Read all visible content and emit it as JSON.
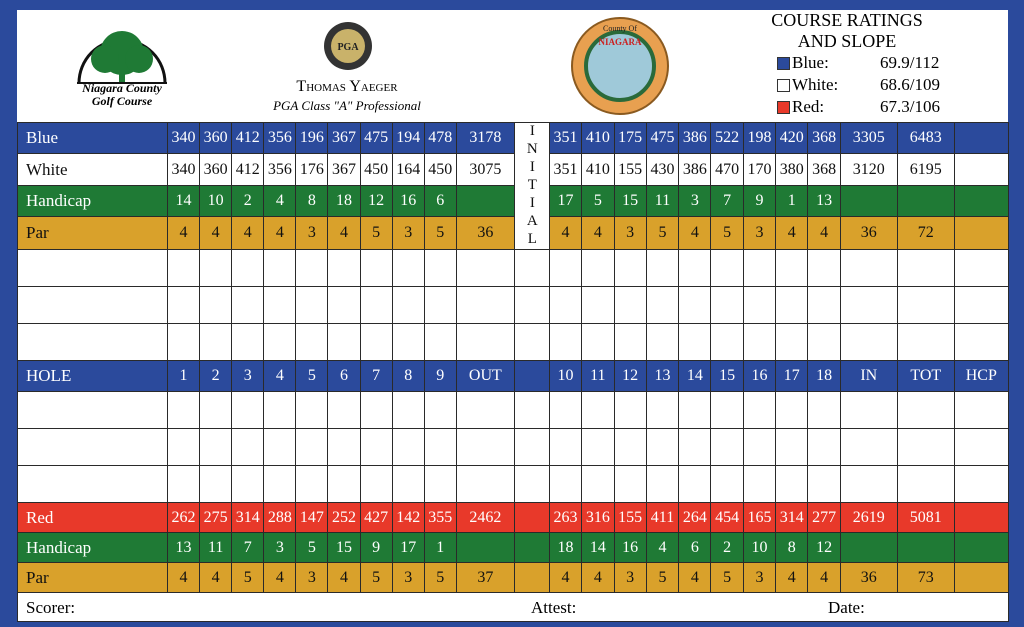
{
  "header": {
    "logo": [
      "Niagara County",
      "Golf Course"
    ],
    "pga_badge": "PGA",
    "pro_name": "Thomas Yaeger",
    "pro_title": "PGA Class \"A\" Professional",
    "seal": [
      "County Of",
      "NIAGARA"
    ],
    "ratings": {
      "title": [
        "COURSE RATINGS",
        "AND SLOPE"
      ],
      "rows": [
        {
          "tee": "Blue:",
          "value": "69.9/112",
          "color": "#2b4a9c"
        },
        {
          "tee": "White:",
          "value": "68.6/109",
          "color": "#ffffff"
        },
        {
          "tee": "Red:",
          "value": "67.3/106",
          "color": "#e8392a"
        }
      ]
    }
  },
  "scorecard": {
    "initial": "INITIAL",
    "rows": [
      {
        "label": "Blue",
        "color": "#2b4a9c",
        "front": [
          340,
          360,
          412,
          356,
          196,
          367,
          475,
          194,
          478
        ],
        "out": 3178,
        "back": [
          351,
          410,
          175,
          475,
          386,
          522,
          198,
          420,
          368
        ],
        "in": 3305,
        "tot": 6483
      },
      {
        "label": "White",
        "color": "#ffffff",
        "front": [
          340,
          360,
          412,
          356,
          176,
          367,
          450,
          164,
          450
        ],
        "out": 3075,
        "back": [
          351,
          410,
          155,
          430,
          386,
          470,
          170,
          380,
          368
        ],
        "in": 3120,
        "tot": 6195
      },
      {
        "label": "Handicap",
        "color": "#1f7a35",
        "front": [
          14,
          10,
          2,
          4,
          8,
          18,
          12,
          16,
          6
        ],
        "back": [
          17,
          5,
          15,
          11,
          3,
          7,
          9,
          1,
          13
        ]
      },
      {
        "label": "Par",
        "color": "#d9a12b",
        "front": [
          4,
          4,
          4,
          4,
          3,
          4,
          5,
          3,
          5
        ],
        "out": 36,
        "back": [
          4,
          4,
          3,
          5,
          4,
          5,
          3,
          4,
          4
        ],
        "in": 36,
        "tot": 72
      },
      {
        "label": "HOLE",
        "color": "#2b4a9c",
        "front": [
          1,
          2,
          3,
          4,
          5,
          6,
          7,
          8,
          9
        ],
        "out": "OUT",
        "back": [
          10,
          11,
          12,
          13,
          14,
          15,
          16,
          17,
          18
        ],
        "in": "IN",
        "tot": "TOT",
        "hcp": "HCP"
      },
      {
        "label": "Red",
        "color": "#e8392a",
        "front": [
          262,
          275,
          314,
          288,
          147,
          252,
          427,
          142,
          355
        ],
        "out": 2462,
        "back": [
          263,
          316,
          155,
          411,
          264,
          454,
          165,
          314,
          277
        ],
        "in": 2619,
        "tot": 5081
      },
      {
        "label": "Handicap",
        "color": "#1f7a35",
        "front": [
          13,
          11,
          7,
          3,
          5,
          15,
          9,
          17,
          1
        ],
        "back": [
          18,
          14,
          16,
          4,
          6,
          2,
          10,
          8,
          12
        ]
      },
      {
        "label": "Par",
        "color": "#d9a12b",
        "front": [
          4,
          4,
          5,
          4,
          3,
          4,
          5,
          3,
          5
        ],
        "out": 37,
        "back": [
          4,
          4,
          3,
          5,
          4,
          5,
          3,
          4,
          4
        ],
        "in": 36,
        "tot": 73
      }
    ],
    "footer": [
      "Scorer:",
      "Attest:",
      "Date:"
    ]
  }
}
